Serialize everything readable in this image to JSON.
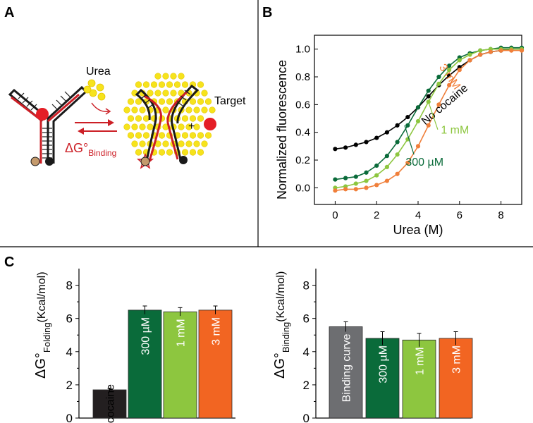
{
  "panels": {
    "a": {
      "letter": "A",
      "urea_label": "Urea",
      "target_label": "Target",
      "plus_symbol": "+",
      "dg_symbol": "ΔG°",
      "dg_subscript": "Binding",
      "colors": {
        "strand": "#cc1f26",
        "target": "#e41e26",
        "urea": "#f6e31c",
        "urea_edge": "#e5c400",
        "tan": "#c49a6c",
        "black": "#1a1a1a"
      }
    },
    "b": {
      "letter": "B"
    },
    "c": {
      "letter": "C"
    }
  },
  "chart_data": [
    {
      "type": "line",
      "title": "",
      "xlabel": "Urea (M)",
      "ylabel": "Normalized fluorescence",
      "xlim": [
        -1,
        9
      ],
      "ylim": [
        -0.12,
        1.1
      ],
      "xticks": [
        0,
        2,
        4,
        6,
        8
      ],
      "yticks": [
        0.0,
        0.2,
        0.4,
        0.6,
        0.8,
        1.0
      ],
      "ytick_labels": [
        "0.0",
        "0.2",
        "0.4",
        "0.6",
        "0.8",
        "1.0"
      ],
      "x": [
        0,
        0.5,
        1,
        1.5,
        2,
        2.5,
        3,
        3.5,
        4,
        4.5,
        5,
        5.5,
        6,
        6.5,
        7,
        7.5,
        8,
        8.5,
        9
      ],
      "series": [
        {
          "name": "No cocaine",
          "label": "No cocaine",
          "color": "#000000",
          "values": [
            0.28,
            0.29,
            0.31,
            0.33,
            0.36,
            0.4,
            0.45,
            0.51,
            0.58,
            0.66,
            0.74,
            0.81,
            0.87,
            0.92,
            0.96,
            0.98,
            0.99,
            1.0,
            1.0
          ]
        },
        {
          "name": "300 µM",
          "label": "300 µM",
          "color": "#0a6b3a",
          "values": [
            0.06,
            0.07,
            0.08,
            0.11,
            0.16,
            0.23,
            0.33,
            0.45,
            0.58,
            0.7,
            0.8,
            0.88,
            0.94,
            0.97,
            0.99,
            1.0,
            1.01,
            1.01,
            1.01
          ]
        },
        {
          "name": "1 mM",
          "label": "1 mM",
          "color": "#8dc63f",
          "values": [
            0.0,
            0.01,
            0.03,
            0.05,
            0.09,
            0.15,
            0.24,
            0.35,
            0.48,
            0.62,
            0.75,
            0.85,
            0.92,
            0.96,
            0.99,
            1.0,
            1.0,
            1.0,
            1.0
          ]
        },
        {
          "name": "3 mM",
          "label": "3 mM",
          "color": "#f07f3a",
          "values": [
            -0.02,
            -0.01,
            -0.01,
            0.0,
            0.02,
            0.05,
            0.1,
            0.18,
            0.3,
            0.45,
            0.6,
            0.74,
            0.85,
            0.92,
            0.96,
            0.98,
            0.99,
            0.99,
            0.99
          ]
        }
      ]
    },
    {
      "type": "bar",
      "title": "",
      "ylabel": "ΔG°",
      "ylabel_subscript": "Folding",
      "ylabel_units": "(Kcal/mol)",
      "ylim": [
        0,
        9
      ],
      "yticks": [
        0,
        2,
        4,
        6,
        8
      ],
      "categories": [
        "No cocaine",
        "300 µM",
        "1 mM",
        "3 mM"
      ],
      "values": [
        1.7,
        6.5,
        6.4,
        6.5
      ],
      "errors": [
        0.1,
        0.25,
        0.25,
        0.25
      ],
      "colors": [
        "#231f20",
        "#0a6b3a",
        "#8dc63f",
        "#f26522"
      ]
    },
    {
      "type": "bar",
      "title": "",
      "ylabel": "ΔG°",
      "ylabel_subscript": "Binding",
      "ylabel_units": "(Kcal/mol)",
      "ylim": [
        0,
        9
      ],
      "yticks": [
        0,
        2,
        4,
        6,
        8
      ],
      "categories": [
        "Binding curve",
        "300 µM",
        "1 mM",
        "3 mM"
      ],
      "values": [
        5.5,
        4.8,
        4.7,
        4.8
      ],
      "errors": [
        0.3,
        0.4,
        0.4,
        0.4
      ],
      "colors": [
        "#6d6e71",
        "#0a6b3a",
        "#8dc63f",
        "#f26522"
      ]
    }
  ]
}
